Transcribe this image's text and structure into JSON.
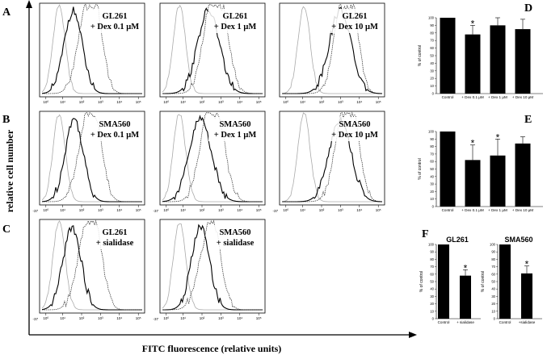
{
  "figure": {
    "y_axis_title": "relative cell number",
    "x_axis_title": "FITC fluorescence (relative units)"
  },
  "row_letters": [
    "A",
    "B",
    "C"
  ],
  "histograms": [
    {
      "row": 0,
      "col": 0,
      "label": [
        "GL261",
        "+ Dex 0.1 μM"
      ]
    },
    {
      "row": 0,
      "col": 1,
      "label": [
        "GL261",
        "+ Dex 1 μM"
      ]
    },
    {
      "row": 0,
      "col": 2,
      "label": [
        "GL261",
        "+ Dex 10 μM"
      ]
    },
    {
      "row": 1,
      "col": 0,
      "label": [
        "SMA560",
        "+ Dex 0.1 μM"
      ]
    },
    {
      "row": 1,
      "col": 1,
      "label": [
        "SMA560",
        "+ Dex 1 μM"
      ]
    },
    {
      "row": 1,
      "col": 2,
      "label": [
        "SMA560",
        "+ Dex 10 μM"
      ]
    },
    {
      "row": 2,
      "col": 0,
      "label": [
        "GL261",
        "+ sialidase"
      ]
    },
    {
      "row": 2,
      "col": 1,
      "label": [
        "SMA560",
        "+ sialidase"
      ]
    }
  ],
  "hist_x_ticks": [
    "10⁰",
    "10¹",
    "10²",
    "10³",
    "10⁴",
    "10⁵"
  ],
  "hist_left_tick": "-37",
  "chart_data": [
    {
      "panel": "D",
      "type": "bar",
      "categories": [
        "Control",
        "+ Dex 0.1 μM",
        "+ Dex 1 μM",
        "+ Dex 10 μM"
      ],
      "values": [
        100,
        78,
        90,
        85
      ],
      "errors": [
        0,
        12,
        10,
        13
      ],
      "significant": [
        false,
        true,
        false,
        false
      ],
      "ylabel": "% of control",
      "ylim": [
        0,
        100
      ],
      "yticks": [
        "0",
        "10",
        "20",
        "30",
        "40",
        "50",
        "60",
        "70",
        "80",
        "90",
        "100"
      ]
    },
    {
      "panel": "E",
      "type": "bar",
      "categories": [
        "Control",
        "+ Dex 0.1 μM",
        "+ Dex 1 μM",
        "+ Dex 10 μM"
      ],
      "values": [
        100,
        62,
        68,
        84
      ],
      "errors": [
        0,
        20,
        22,
        9
      ],
      "significant": [
        false,
        true,
        true,
        false
      ],
      "ylabel": "% of control",
      "ylim": [
        0,
        100
      ],
      "yticks": [
        "0",
        "10",
        "20",
        "30",
        "40",
        "50",
        "60",
        "70",
        "80",
        "90",
        "100"
      ]
    },
    {
      "panel": "F",
      "type": "bar",
      "groups": [
        {
          "title": "GL261",
          "categories": [
            "Control",
            "+ sialidase"
          ],
          "values": [
            100,
            58
          ],
          "errors": [
            0,
            8
          ],
          "significant": [
            false,
            true
          ]
        },
        {
          "title": "SMA560",
          "categories": [
            "Control",
            "+sialidase"
          ],
          "values": [
            100,
            61
          ],
          "errors": [
            0,
            10
          ],
          "significant": [
            false,
            true
          ]
        }
      ],
      "ylabel": "% of control",
      "ylim": [
        0,
        100
      ],
      "yticks": [
        "0",
        "10",
        "20",
        "30",
        "40",
        "50",
        "60",
        "70",
        "80",
        "90",
        "100"
      ],
      "star_symbol": "*"
    }
  ]
}
